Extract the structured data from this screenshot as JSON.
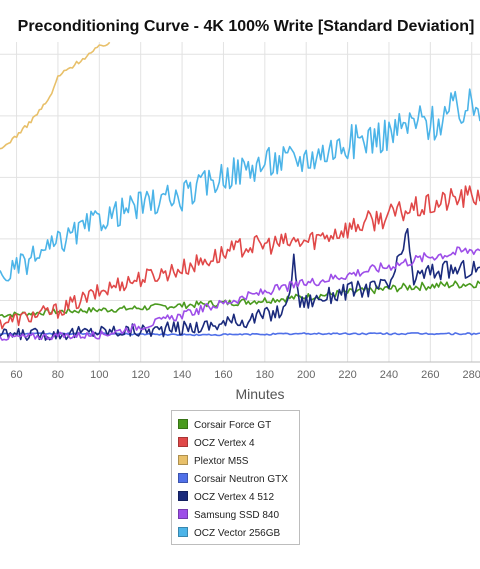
{
  "chart_data": {
    "type": "line",
    "title": "Preconditioning Curve - 4K 100% Write [Standard Deviation]",
    "xlabel": "Minutes",
    "ylabel": "",
    "xlim": [
      52,
      284
    ],
    "ylim": [
      0,
      26
    ],
    "x_ticks": [
      60,
      80,
      100,
      120,
      140,
      160,
      180,
      200,
      220,
      240,
      260,
      280
    ],
    "grid": true,
    "legend_position": "bottom",
    "series": [
      {
        "name": "Corsair Force GT",
        "color": "#4a9a1e",
        "x": [
          52,
          80,
          110,
          140,
          170,
          200,
          230,
          250,
          284
        ],
        "y": [
          3.8,
          4.1,
          4.3,
          4.6,
          4.9,
          5.3,
          5.8,
          6.1,
          6.4
        ]
      },
      {
        "name": "OCZ Vertex 4",
        "color": "#e04848",
        "x": [
          52,
          80,
          110,
          140,
          170,
          200,
          230,
          250,
          258,
          270,
          284
        ],
        "y": [
          3.2,
          4.2,
          6.4,
          7.6,
          9.4,
          9.8,
          11.4,
          12.4,
          12.6,
          13.2,
          13.6
        ]
      },
      {
        "name": "Plextor M5S",
        "color": "#e8c06a",
        "x": [
          52,
          60,
          65,
          70,
          75,
          78,
          80,
          85,
          90,
          95,
          100,
          105
        ],
        "y": [
          17.2,
          18.4,
          19.2,
          20.2,
          21.2,
          22.2,
          23.2,
          23.8,
          24.4,
          25.0,
          25.6,
          26.0
        ]
      },
      {
        "name": "Corsair Neutron GTX",
        "color": "#5070e8",
        "x": [
          52,
          100,
          150,
          200,
          250,
          284
        ],
        "y": [
          2.3,
          2.3,
          2.2,
          2.3,
          2.3,
          2.3
        ]
      },
      {
        "name": "OCZ Vertex 4 512",
        "color": "#1a2a7c",
        "x": [
          52,
          80,
          100,
          130,
          150,
          170,
          190,
          194,
          197,
          220,
          240,
          246,
          249,
          252,
          260,
          284
        ],
        "y": [
          2.2,
          2.3,
          2.5,
          2.6,
          2.9,
          3.4,
          4.2,
          8.2,
          4.8,
          5.8,
          6.2,
          8.8,
          10.2,
          6.8,
          7.4,
          7.6
        ]
      },
      {
        "name": "Samsung SSD 840",
        "color": "#9d4ee8",
        "x": [
          52,
          100,
          120,
          140,
          160,
          180,
          200,
          220,
          240,
          260,
          284
        ],
        "y": [
          2.0,
          2.2,
          2.9,
          3.8,
          4.8,
          5.7,
          6.4,
          7.1,
          7.8,
          8.6,
          9.2
        ]
      },
      {
        "name": "OCZ Vector 256GB",
        "color": "#4cb4e8",
        "x": [
          52,
          80,
          100,
          120,
          140,
          160,
          180,
          200,
          220,
          240,
          255,
          262,
          270,
          284
        ],
        "y": [
          6.8,
          9.6,
          11.6,
          12.8,
          13.4,
          15.2,
          16.2,
          16.6,
          17.8,
          18.6,
          19.6,
          19.4,
          20.4,
          20.8
        ]
      }
    ]
  }
}
